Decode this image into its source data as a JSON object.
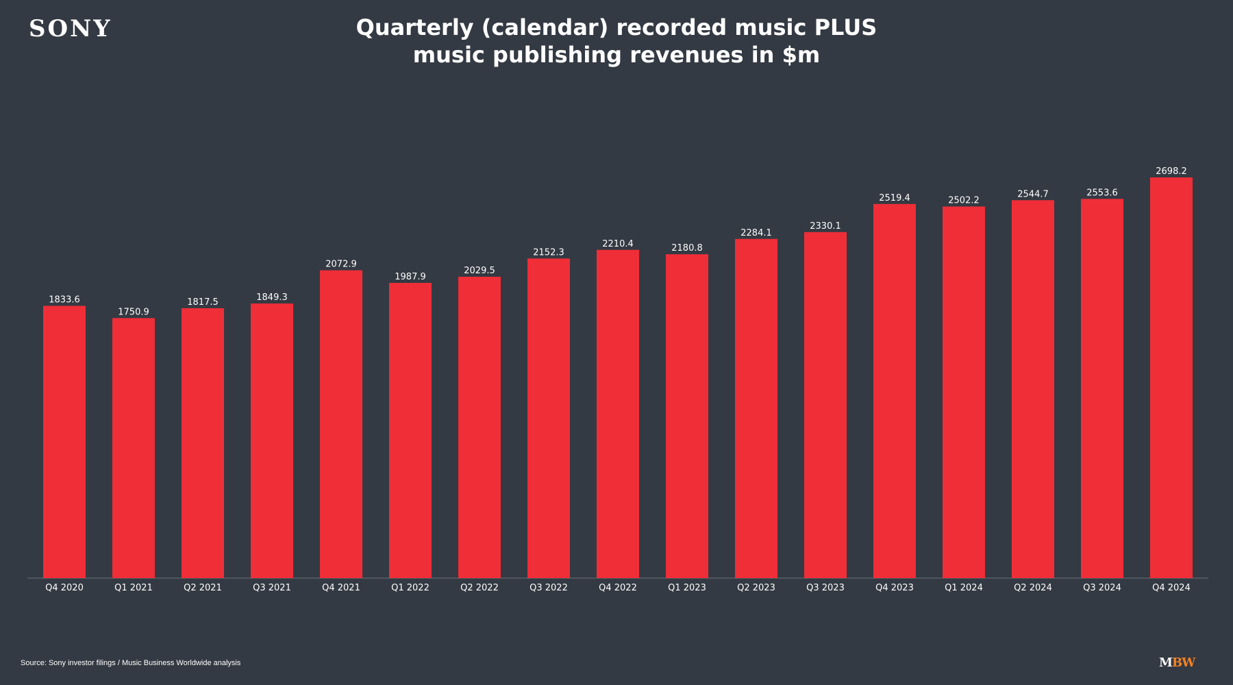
{
  "brand": {
    "logo_text": "SONY",
    "publisher_mark_m": "M",
    "publisher_mark_bw": "BW"
  },
  "header": {
    "title_line1": "Quarterly (calendar) recorded music PLUS",
    "title_line2": "music publishing revenues in $m"
  },
  "footer": {
    "source": "Source: Sony investor filings / Music Business Worldwide analysis"
  },
  "colors": {
    "background": "#343a43",
    "bar": "#ef2e38",
    "text": "#ffffff",
    "axis": "#6b717a",
    "brand_accent": "#f58220"
  },
  "chart_data": {
    "type": "bar",
    "title": "Quarterly (calendar) recorded music PLUS music publishing revenues in $m",
    "xlabel": "",
    "ylabel": "",
    "ylim": [
      0,
      2698.2
    ],
    "grid": false,
    "legend": "none",
    "categories": [
      "Q4 2020",
      "Q1 2021",
      "Q2 2021",
      "Q3 2021",
      "Q4 2021",
      "Q1 2022",
      "Q2 2022",
      "Q3 2022",
      "Q4 2022",
      "Q1 2023",
      "Q2 2023",
      "Q3 2023",
      "Q4 2023",
      "Q1 2024",
      "Q2 2024",
      "Q3 2024",
      "Q4 2024"
    ],
    "values": [
      1833.6,
      1750.9,
      1817.5,
      1849.3,
      2072.9,
      1987.9,
      2029.5,
      2152.3,
      2210.4,
      2180.8,
      2284.1,
      2330.1,
      2519.4,
      2502.2,
      2544.7,
      2553.6,
      2698.2
    ],
    "data_labels": [
      "1833.6",
      "1750.9",
      "1817.5",
      "1849.3",
      "2072.9",
      "1987.9",
      "2029.5",
      "2152.3",
      "2210.4",
      "2180.8",
      "2284.1",
      "2330.1",
      "2519.4",
      "2502.2",
      "2544.7",
      "2553.6",
      "2698.2"
    ]
  }
}
